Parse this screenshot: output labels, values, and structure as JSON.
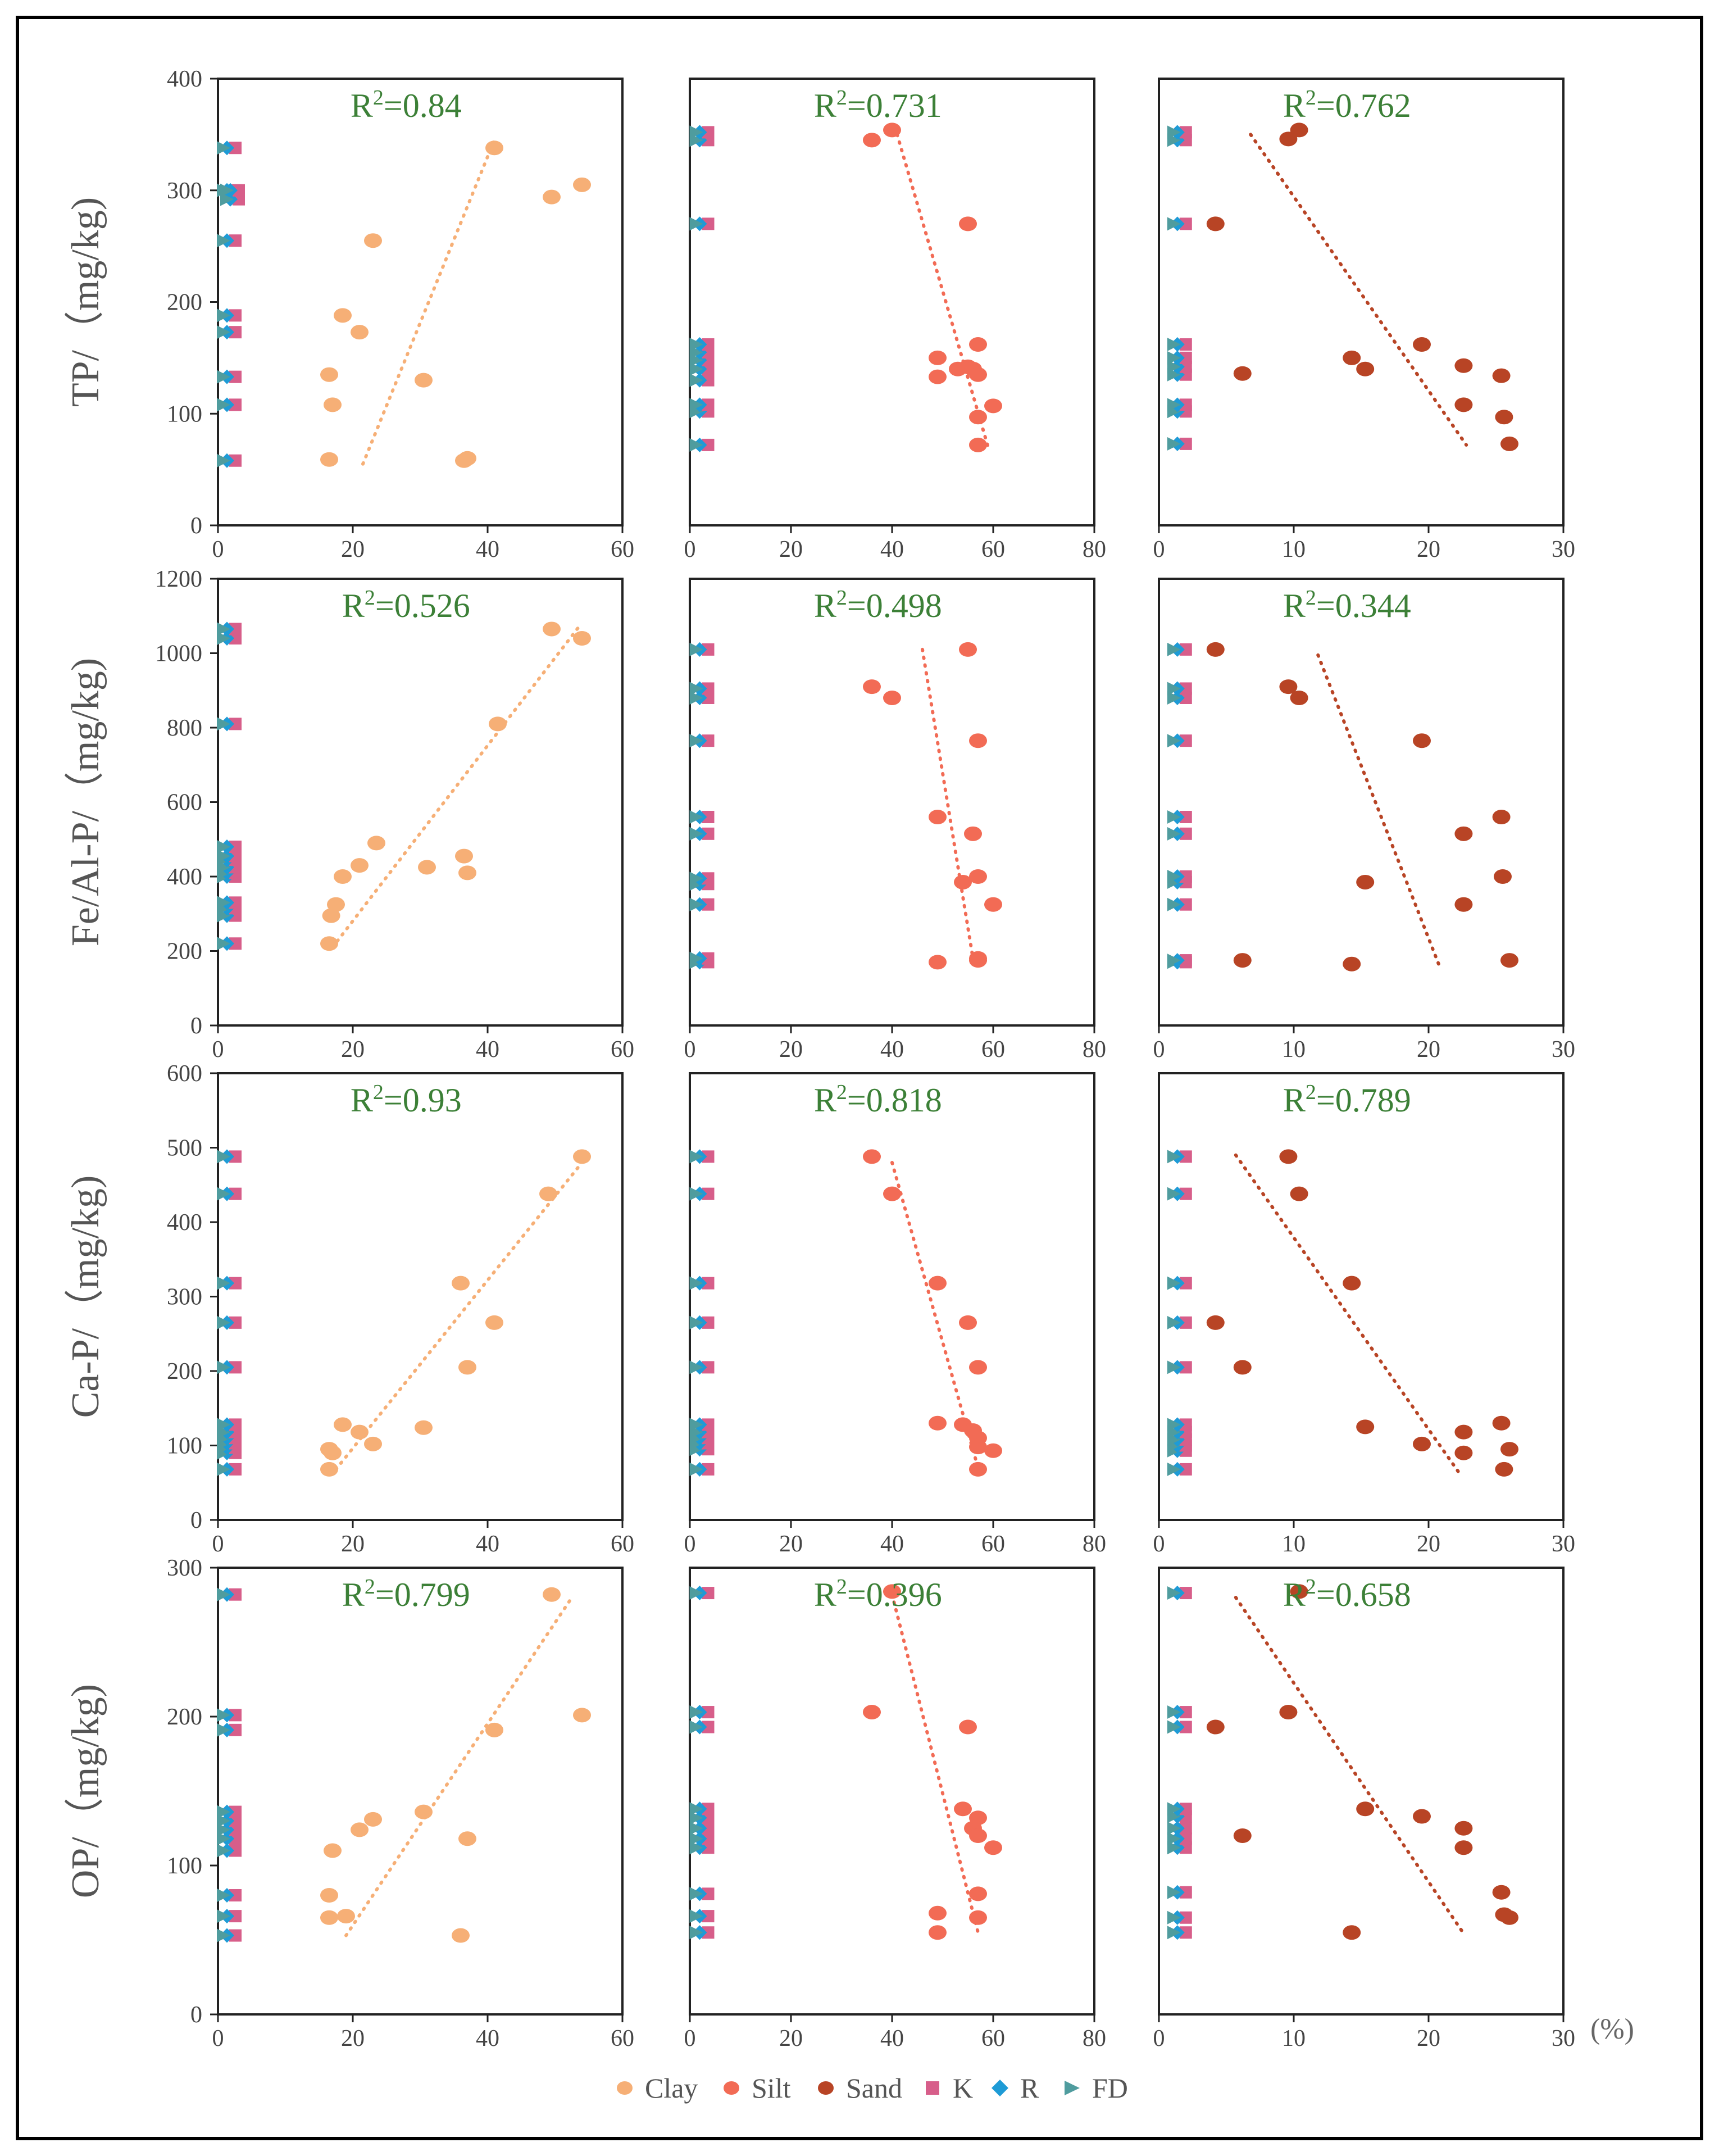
{
  "figure": {
    "legend": [
      {
        "label": "Clay",
        "symbol": "circle",
        "color": "#F6AF76"
      },
      {
        "label": "Silt",
        "symbol": "circle",
        "color": "#F26B55"
      },
      {
        "label": "Sand",
        "symbol": "circle",
        "color": "#B84425"
      },
      {
        "label": "K",
        "symbol": "square",
        "color": "#D75E8A"
      },
      {
        "label": "R",
        "symbol": "diamond",
        "color": "#1E9BD6"
      },
      {
        "label": "FD",
        "symbol": "triangle",
        "color": "#4F9C9E"
      }
    ],
    "unit_label": "(%)"
  },
  "colors": {
    "r2": "#3C8037",
    "axis": "#333333",
    "tick": "#444444"
  },
  "chart_data": [
    {
      "type": "scatter",
      "row": 0,
      "col": 0,
      "ylabel": "TP/（mg/kg)",
      "r2_label": "R²=0.84",
      "xlim": [
        0,
        60
      ],
      "ylim": [
        0,
        400
      ],
      "xticks": [
        0,
        20,
        40,
        60
      ],
      "yticks": [
        0,
        100,
        200,
        300,
        400
      ],
      "fraction": "Clay",
      "points": [
        [
          16.5,
          59
        ],
        [
          17,
          108
        ],
        [
          16.5,
          135
        ],
        [
          18.5,
          188
        ],
        [
          21,
          173
        ],
        [
          23,
          255
        ],
        [
          30.5,
          130
        ],
        [
          36.5,
          58
        ],
        [
          37,
          60
        ],
        [
          41,
          338
        ],
        [
          49.5,
          294
        ],
        [
          54,
          305
        ]
      ],
      "trendline": [
        [
          21.5,
          55
        ],
        [
          41,
          345
        ]
      ],
      "groups": [
        {
          "x": 1,
          "y": [
            58,
            108,
            133,
            173,
            188,
            255,
            300,
            338
          ]
        },
        {
          "x": 1.5,
          "y": [
            292,
            300
          ]
        }
      ]
    },
    {
      "type": "scatter",
      "row": 0,
      "col": 1,
      "r2_label": "R²=0.731",
      "xlim": [
        0,
        80
      ],
      "ylim": [
        0,
        400
      ],
      "xticks": [
        0,
        20,
        40,
        60,
        80
      ],
      "fraction": "Silt",
      "points": [
        [
          36,
          345
        ],
        [
          40,
          354
        ],
        [
          49,
          150
        ],
        [
          49,
          133
        ],
        [
          53,
          140
        ],
        [
          55,
          270
        ],
        [
          55,
          142
        ],
        [
          56,
          140
        ],
        [
          57,
          135
        ],
        [
          57,
          162
        ],
        [
          57,
          97
        ],
        [
          57,
          72
        ],
        [
          60,
          107
        ]
      ],
      "trendline": [
        [
          41,
          350
        ],
        [
          59,
          70
        ]
      ],
      "groups": [
        {
          "x": 1.5,
          "y": [
            72,
            102,
            108,
            130,
            140,
            148,
            155,
            162,
            270,
            345,
            352
          ]
        }
      ]
    },
    {
      "type": "scatter",
      "row": 0,
      "col": 2,
      "r2_label": "R²=0.762",
      "xlim": [
        0,
        30
      ],
      "ylim": [
        0,
        400
      ],
      "xticks": [
        0,
        10,
        20,
        30
      ],
      "fraction": "Sand",
      "points": [
        [
          4.2,
          270
        ],
        [
          6.2,
          136
        ],
        [
          9.6,
          346
        ],
        [
          10.4,
          354
        ],
        [
          14.3,
          150
        ],
        [
          15.3,
          140
        ],
        [
          19.5,
          162
        ],
        [
          22.6,
          143
        ],
        [
          22.6,
          108
        ],
        [
          25.4,
          134
        ],
        [
          25.6,
          97
        ],
        [
          26,
          73
        ]
      ],
      "trendline": [
        [
          6.8,
          350
        ],
        [
          22.8,
          72
        ]
      ],
      "groups": [
        {
          "x": 1.2,
          "y": [
            73,
            102,
            108,
            135,
            142,
            150,
            162,
            270,
            345,
            352
          ]
        }
      ]
    },
    {
      "type": "scatter",
      "row": 1,
      "col": 0,
      "ylabel": "Fe/Al-P/（mg/kg)",
      "r2_label": "R²=0.526",
      "xlim": [
        0,
        60
      ],
      "ylim": [
        0,
        1200
      ],
      "xticks": [
        0,
        20,
        40,
        60
      ],
      "yticks": [
        0,
        200,
        400,
        600,
        800,
        1000,
        1200
      ],
      "fraction": "Clay",
      "points": [
        [
          16.5,
          220
        ],
        [
          16.8,
          295
        ],
        [
          17.5,
          325
        ],
        [
          18.5,
          400
        ],
        [
          21,
          430
        ],
        [
          23.5,
          490
        ],
        [
          31,
          425
        ],
        [
          36.5,
          455
        ],
        [
          37,
          410
        ],
        [
          41.5,
          810
        ],
        [
          49.5,
          1065
        ],
        [
          54,
          1040
        ]
      ],
      "trendline": [
        [
          17,
          210
        ],
        [
          53.5,
          1070
        ]
      ],
      "groups": [
        {
          "x": 1,
          "y": [
            220,
            295,
            315,
            330,
            400,
            410,
            425,
            445,
            455,
            480,
            810,
            1040,
            1065
          ]
        }
      ]
    },
    {
      "type": "scatter",
      "row": 1,
      "col": 1,
      "r2_label": "R²=0.498",
      "xlim": [
        0,
        80
      ],
      "ylim": [
        0,
        1200
      ],
      "xticks": [
        0,
        20,
        40,
        60,
        80
      ],
      "fraction": "Silt",
      "points": [
        [
          36,
          910
        ],
        [
          40,
          880
        ],
        [
          49,
          560
        ],
        [
          49,
          170
        ],
        [
          54,
          385
        ],
        [
          55,
          1010
        ],
        [
          56,
          515
        ],
        [
          57,
          765
        ],
        [
          57,
          400
        ],
        [
          57,
          180
        ],
        [
          57,
          175
        ],
        [
          60,
          325
        ]
      ],
      "trendline": [
        [
          46,
          1010
        ],
        [
          56,
          180
        ]
      ],
      "groups": [
        {
          "x": 1.5,
          "y": [
            170,
            180,
            325,
            380,
            395,
            515,
            560,
            765,
            880,
            905,
            1010
          ]
        }
      ]
    },
    {
      "type": "scatter",
      "row": 1,
      "col": 2,
      "r2_label": "R²=0.344",
      "xlim": [
        0,
        30
      ],
      "ylim": [
        0,
        1200
      ],
      "xticks": [
        0,
        10,
        20,
        30
      ],
      "fraction": "Sand",
      "points": [
        [
          4.2,
          1010
        ],
        [
          6.2,
          175
        ],
        [
          9.6,
          910
        ],
        [
          10.4,
          880
        ],
        [
          14.3,
          165
        ],
        [
          15.3,
          385
        ],
        [
          19.5,
          765
        ],
        [
          22.6,
          515
        ],
        [
          22.6,
          325
        ],
        [
          25.4,
          560
        ],
        [
          25.5,
          400
        ],
        [
          26,
          175
        ]
      ],
      "trendline": [
        [
          11.8,
          995
        ],
        [
          20.8,
          160
        ]
      ],
      "groups": [
        {
          "x": 1.2,
          "y": [
            170,
            175,
            325,
            385,
            400,
            515,
            560,
            765,
            880,
            905,
            1010
          ]
        }
      ]
    },
    {
      "type": "scatter",
      "row": 2,
      "col": 0,
      "ylabel": "Ca-P/（mg/kg)",
      "r2_label": "R²=0.93",
      "xlim": [
        0,
        60
      ],
      "ylim": [
        0,
        600
      ],
      "xticks": [
        0,
        20,
        40,
        60
      ],
      "yticks": [
        0,
        100,
        200,
        300,
        400,
        500,
        600
      ],
      "fraction": "Clay",
      "points": [
        [
          16.5,
          68
        ],
        [
          16.5,
          95
        ],
        [
          17,
          90
        ],
        [
          18.5,
          128
        ],
        [
          21,
          118
        ],
        [
          23,
          102
        ],
        [
          30.5,
          124
        ],
        [
          36,
          318
        ],
        [
          37,
          205
        ],
        [
          41,
          265
        ],
        [
          49,
          438
        ],
        [
          54,
          488
        ]
      ],
      "trendline": [
        [
          17.5,
          68
        ],
        [
          54,
          480
        ]
      ],
      "groups": [
        {
          "x": 1,
          "y": [
            68,
            90,
            97,
            103,
            110,
            118,
            128,
            205,
            265,
            318,
            438,
            488
          ]
        }
      ]
    },
    {
      "type": "scatter",
      "row": 2,
      "col": 1,
      "r2_label": "R²=0.818",
      "xlim": [
        0,
        80
      ],
      "ylim": [
        0,
        600
      ],
      "xticks": [
        0,
        20,
        40,
        60,
        80
      ],
      "fraction": "Silt",
      "points": [
        [
          36,
          488
        ],
        [
          40,
          438
        ],
        [
          49,
          318
        ],
        [
          49,
          130
        ],
        [
          54,
          128
        ],
        [
          55,
          265
        ],
        [
          56,
          120
        ],
        [
          57,
          205
        ],
        [
          57,
          110
        ],
        [
          57,
          98
        ],
        [
          57,
          68
        ],
        [
          60,
          93
        ]
      ],
      "trendline": [
        [
          40,
          480
        ],
        [
          57,
          70
        ]
      ],
      "groups": [
        {
          "x": 1.5,
          "y": [
            68,
            95,
            103,
            110,
            118,
            128,
            205,
            265,
            318,
            438,
            488
          ]
        }
      ]
    },
    {
      "type": "scatter",
      "row": 2,
      "col": 2,
      "r2_label": "R²=0.789",
      "xlim": [
        0,
        30
      ],
      "ylim": [
        0,
        600
      ],
      "xticks": [
        0,
        10,
        20,
        30
      ],
      "fraction": "Sand",
      "points": [
        [
          4.2,
          265
        ],
        [
          6.2,
          205
        ],
        [
          9.6,
          488
        ],
        [
          10.4,
          438
        ],
        [
          14.3,
          318
        ],
        [
          15.3,
          125
        ],
        [
          19.5,
          102
        ],
        [
          22.6,
          118
        ],
        [
          22.6,
          90
        ],
        [
          25.4,
          130
        ],
        [
          26,
          95
        ],
        [
          25.6,
          68
        ]
      ],
      "trendline": [
        [
          5.7,
          490
        ],
        [
          22.2,
          65
        ]
      ],
      "groups": [
        {
          "x": 1.2,
          "y": [
            68,
            93,
            100,
            108,
            118,
            128,
            205,
            265,
            318,
            438,
            488
          ]
        }
      ]
    },
    {
      "type": "scatter",
      "row": 3,
      "col": 0,
      "ylabel": "OP/（mg/kg)",
      "r2_label": "R²=0.799",
      "xlim": [
        0,
        60
      ],
      "ylim": [
        0,
        300
      ],
      "xticks": [
        0,
        20,
        40,
        60
      ],
      "yticks": [
        0,
        100,
        200,
        300
      ],
      "fraction": "Clay",
      "points": [
        [
          16.5,
          65
        ],
        [
          16.5,
          80
        ],
        [
          17,
          110
        ],
        [
          19,
          66
        ],
        [
          21,
          124
        ],
        [
          23,
          131
        ],
        [
          30.5,
          136
        ],
        [
          36,
          53
        ],
        [
          37,
          118
        ],
        [
          41,
          191
        ],
        [
          49.5,
          282
        ],
        [
          54,
          201
        ]
      ],
      "trendline": [
        [
          19,
          53
        ],
        [
          52.5,
          280
        ]
      ],
      "groups": [
        {
          "x": 1,
          "y": [
            53,
            66,
            80,
            110,
            118,
            124,
            130,
            136,
            191,
            201,
            282
          ]
        }
      ]
    },
    {
      "type": "scatter",
      "row": 3,
      "col": 1,
      "r2_label": "R²=0.396",
      "xlim": [
        0,
        80
      ],
      "ylim": [
        0,
        300
      ],
      "xticks": [
        0,
        20,
        40,
        60,
        80
      ],
      "fraction": "Silt",
      "points": [
        [
          36,
          203
        ],
        [
          40,
          284
        ],
        [
          49,
          68
        ],
        [
          49,
          55
        ],
        [
          54,
          138
        ],
        [
          55,
          193
        ],
        [
          56,
          125
        ],
        [
          57,
          132
        ],
        [
          57,
          120
        ],
        [
          57,
          81
        ],
        [
          57,
          65
        ],
        [
          60,
          112
        ]
      ],
      "trendline": [
        [
          40,
          282
        ],
        [
          57,
          55
        ]
      ],
      "groups": [
        {
          "x": 1.5,
          "y": [
            55,
            66,
            81,
            112,
            118,
            125,
            132,
            138,
            193,
            203,
            283
          ]
        }
      ]
    },
    {
      "type": "scatter",
      "row": 3,
      "col": 2,
      "r2_label": "R²=0.658",
      "xlim": [
        0,
        30
      ],
      "ylim": [
        0,
        300
      ],
      "xticks": [
        0,
        10,
        20,
        30
      ],
      "fraction": "Sand",
      "points": [
        [
          4.2,
          193
        ],
        [
          6.2,
          120
        ],
        [
          9.6,
          203
        ],
        [
          10.4,
          284
        ],
        [
          14.3,
          55
        ],
        [
          15.3,
          138
        ],
        [
          19.5,
          133
        ],
        [
          22.6,
          125
        ],
        [
          22.6,
          112
        ],
        [
          25.4,
          82
        ],
        [
          25.6,
          67
        ],
        [
          26,
          65
        ]
      ],
      "trendline": [
        [
          5.7,
          280
        ],
        [
          22.7,
          53
        ]
      ],
      "groups": [
        {
          "x": 1.2,
          "y": [
            55,
            65,
            82,
            112,
            118,
            125,
            133,
            138,
            193,
            203,
            283
          ]
        }
      ]
    }
  ]
}
